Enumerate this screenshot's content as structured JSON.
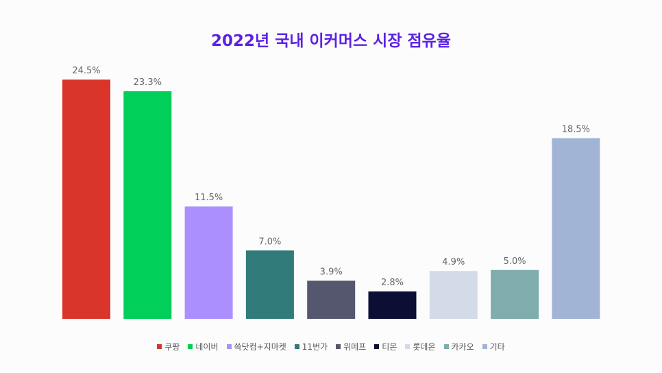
{
  "chart_data": {
    "type": "bar",
    "title": "2022년 국내 이커머스 시장 점유율",
    "categories": [
      "쿠팡",
      "네이버",
      "쓱닷컴+지마켓",
      "11번가",
      "위메프",
      "티몬",
      "롯데온",
      "카카오",
      "기타"
    ],
    "values": [
      24.5,
      23.3,
      11.5,
      7.0,
      3.9,
      2.8,
      4.9,
      5.0,
      18.5
    ],
    "labels": [
      "24.5%",
      "23.3%",
      "11.5%",
      "7.0%",
      "3.9%",
      "2.8%",
      "4.9%",
      "5.0%",
      "18.5%"
    ],
    "colors": [
      "#da352a",
      "#00cf5a",
      "#ab8fff",
      "#317b7b",
      "#55576f",
      "#0a0f33",
      "#d3dbe8",
      "#7fadad",
      "#a1b4d6"
    ],
    "grid": false,
    "legend": "bottom",
    "title_color": "#5b21e4"
  }
}
